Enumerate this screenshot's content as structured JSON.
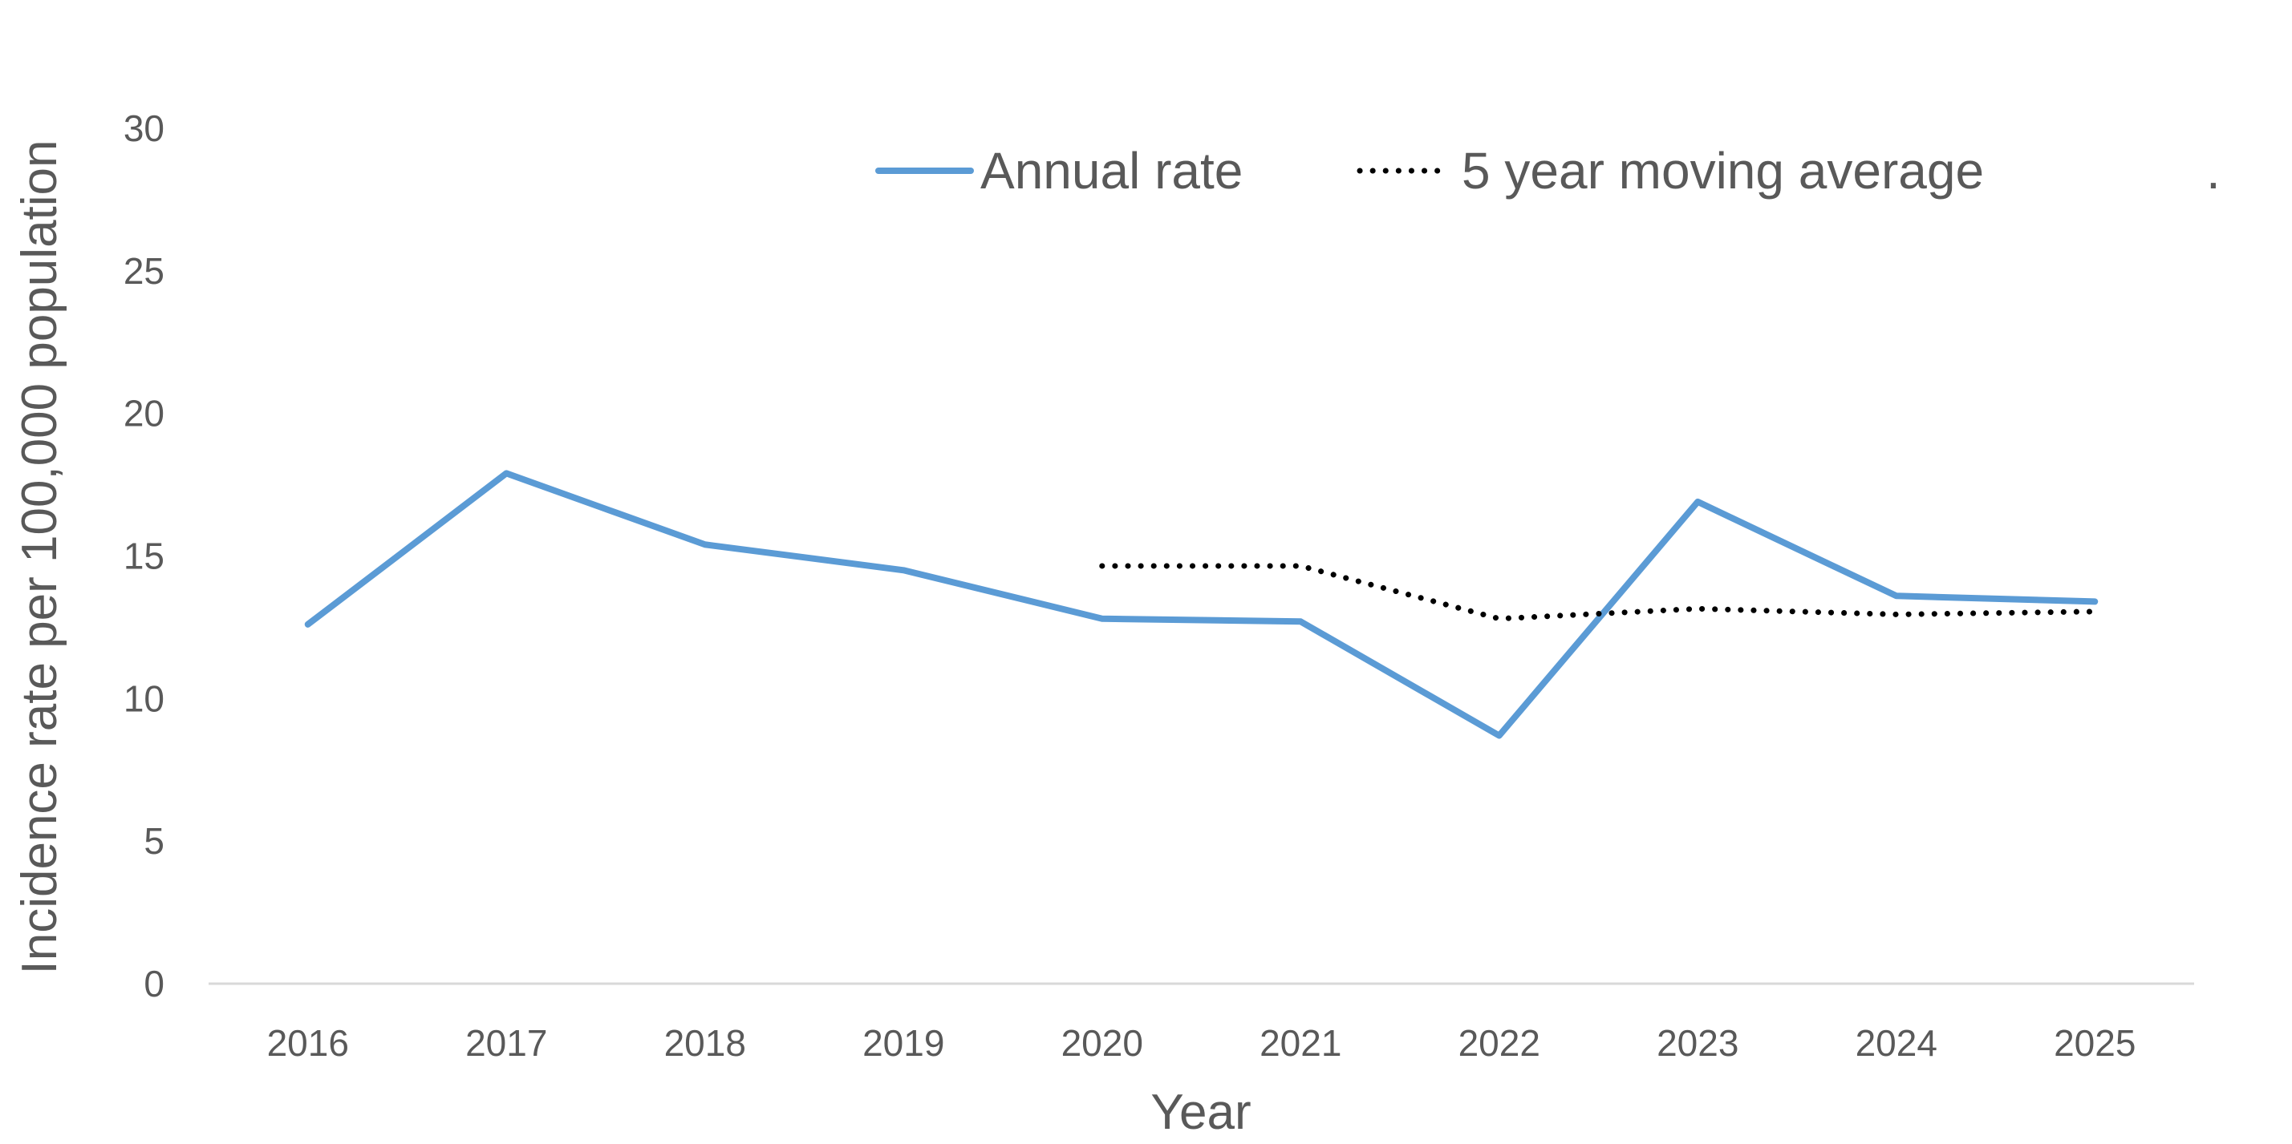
{
  "chart_data": {
    "type": "line",
    "title": "",
    "xlabel": "Year",
    "ylabel": "Incidence rate per 100,000 population",
    "categories": [
      "2016",
      "2017",
      "2018",
      "2019",
      "2020",
      "2021",
      "2022",
      "2023",
      "2024",
      "2025"
    ],
    "ylim": [
      0,
      30
    ],
    "yticks": [
      "0",
      "5",
      "10",
      "15",
      "20",
      "25",
      "30"
    ],
    "grid": false,
    "legend_position": "top-right",
    "legend_extra_text": ".",
    "series": [
      {
        "name": "Annual rate",
        "style": "solid",
        "color": "#5B9BD5",
        "values": [
          12.6,
          17.9,
          15.4,
          14.5,
          12.8,
          12.7,
          8.7,
          16.9,
          13.6,
          13.4
        ]
      },
      {
        "name": "5 year moving average",
        "style": "dotted",
        "color": "#000000",
        "values": [
          null,
          null,
          null,
          null,
          14.65,
          14.65,
          12.8,
          13.15,
          12.95,
          13.05
        ]
      }
    ]
  }
}
